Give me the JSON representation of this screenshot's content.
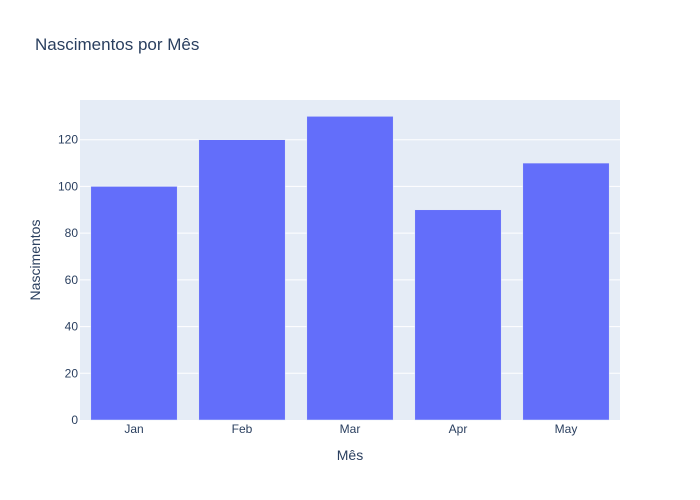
{
  "chart_data": {
    "type": "bar",
    "title": "Nascimentos por Mês",
    "xlabel": "Mês",
    "ylabel": "Nascimentos",
    "categories": [
      "Jan",
      "Feb",
      "Mar",
      "Apr",
      "May"
    ],
    "values": [
      100,
      120,
      130,
      90,
      110
    ],
    "ylim": [
      0,
      137
    ],
    "yticks": [
      0,
      20,
      40,
      60,
      80,
      100,
      120
    ],
    "grid": true,
    "colors": {
      "bar": "#636efa",
      "plot_background": "#e5ecf6",
      "gridline": "#ffffff",
      "text": "#2a3f5f"
    }
  }
}
